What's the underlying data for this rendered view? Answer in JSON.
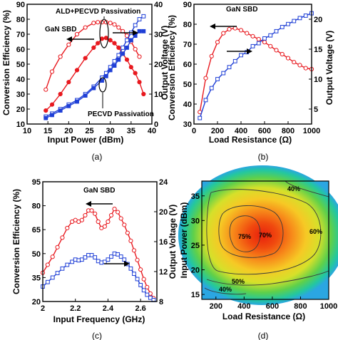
{
  "chart_data": [
    {
      "type": "line",
      "panel_label": "(a)",
      "annotations": [
        "GaN SBD",
        "ALD+PECVD Passivation",
        "PECVD Passivation"
      ],
      "xlabel": "Input Power (dBm)",
      "ylabel_left": "Conversion Efficiency (%)",
      "ylabel_right": "Output Voltage (V)",
      "xlim": [
        10,
        40
      ],
      "ylim_left": [
        10,
        90
      ],
      "ylim_right": [
        0,
        40
      ],
      "xticks": [
        10,
        15,
        20,
        25,
        30,
        35,
        40
      ],
      "yticks_left": [
        10,
        20,
        30,
        40,
        50,
        60,
        70,
        80,
        90
      ],
      "yticks_right": [
        0,
        10,
        20,
        30,
        40
      ],
      "series": [
        {
          "color": "#e8191f",
          "marker": "open-circle",
          "axis": "left",
          "x": [
            14.5,
            16,
            18,
            20,
            22,
            24,
            26,
            27,
            28,
            29,
            30,
            31,
            32,
            33,
            34,
            35,
            36,
            37
          ],
          "y": [
            33,
            45,
            55,
            63,
            70,
            74.5,
            77.5,
            78,
            78,
            78,
            77.5,
            76.5,
            74.5,
            72,
            69,
            65,
            60,
            55
          ]
        },
        {
          "color": "#e8191f",
          "marker": "filled-circle",
          "axis": "left",
          "x": [
            14.5,
            16,
            18,
            20,
            22,
            24,
            26,
            27,
            28,
            29,
            30,
            31,
            32,
            33,
            34,
            35,
            36,
            37,
            38
          ],
          "y": [
            19,
            23,
            30,
            38,
            46,
            54,
            61,
            64,
            67,
            67.5,
            66,
            64,
            61,
            57,
            53,
            48,
            44,
            38,
            30
          ]
        },
        {
          "color": "#1f3fd6",
          "marker": "open-square",
          "axis": "right",
          "x": [
            14.5,
            16,
            18,
            20,
            22,
            24,
            26,
            28,
            29,
            30,
            31,
            32,
            33,
            34,
            35,
            36,
            37,
            38
          ],
          "y": [
            2.5,
            3.5,
            5,
            6.5,
            8,
            10,
            12.5,
            15.5,
            17,
            19,
            21,
            23,
            25.5,
            28,
            30.5,
            33,
            35,
            36
          ]
        },
        {
          "color": "#1f3fd6",
          "marker": "filled-square",
          "axis": "right",
          "x": [
            14.5,
            16,
            18,
            20,
            22,
            24,
            26,
            28,
            29,
            30,
            31,
            32,
            33,
            34,
            35,
            36,
            37,
            38
          ],
          "y": [
            2,
            3,
            4.5,
            6,
            7.5,
            9.5,
            12,
            14.5,
            16,
            18,
            19.5,
            21.5,
            23.5,
            25.5,
            28,
            29.5,
            31,
            31
          ]
        }
      ]
    },
    {
      "type": "line",
      "panel_label": "(b)",
      "annotations": [
        "GaN SBD"
      ],
      "xlabel": "Load Resistance (Ω)",
      "ylabel_left": "Conversion Efficiency (%)",
      "ylabel_right": "Output Voltage (V)",
      "xlim": [
        0,
        1000
      ],
      "ylim_left": [
        30,
        90
      ],
      "ylim_right": [
        2.5,
        22.5
      ],
      "xticks": [
        0,
        200,
        400,
        600,
        800,
        1000
      ],
      "yticks_left": [
        30,
        40,
        50,
        60,
        70,
        80,
        90
      ],
      "yticks_right": [
        5,
        10,
        15,
        20
      ],
      "series": [
        {
          "color": "#e8191f",
          "marker": "open-circle",
          "axis": "left",
          "x": [
            50,
            100,
            150,
            200,
            250,
            300,
            350,
            400,
            450,
            500,
            550,
            600,
            650,
            700,
            750,
            800,
            850,
            900,
            950,
            1000
          ],
          "y": [
            36,
            53,
            64,
            71,
            75.5,
            77.5,
            78,
            77,
            75.5,
            74,
            72.5,
            71,
            69,
            67,
            65,
            63,
            61,
            59.5,
            58,
            57.5
          ]
        },
        {
          "color": "#1f3fd6",
          "marker": "open-square",
          "axis": "right",
          "x": [
            50,
            100,
            150,
            200,
            250,
            300,
            350,
            400,
            450,
            500,
            550,
            600,
            650,
            700,
            750,
            800,
            850,
            900,
            950,
            1000
          ],
          "y": [
            3.5,
            6.5,
            8.5,
            10,
            11,
            12,
            13,
            14,
            14.5,
            15.5,
            16,
            16.8,
            17.3,
            18,
            18.7,
            19.2,
            19.7,
            20.2,
            20.6,
            21
          ]
        }
      ]
    },
    {
      "type": "line",
      "panel_label": "(c)",
      "annotations": [
        "GaN SBD"
      ],
      "xlabel": "Input Frequency (GHz)",
      "ylabel_left": "Conversion Efficiency (%)",
      "ylabel_right": "Output Voltage (V)",
      "xlim": [
        2.0,
        2.7
      ],
      "ylim_left": [
        20,
        95
      ],
      "ylim_right": [
        8,
        24
      ],
      "xticks": [
        2.0,
        2.2,
        2.4,
        2.6
      ],
      "yticks_left": [
        20,
        35,
        50,
        65,
        80,
        95
      ],
      "yticks_right": [
        8,
        12,
        16,
        20,
        24
      ],
      "series": [
        {
          "color": "#e8191f",
          "marker": "open-circle",
          "axis": "left",
          "x": [
            2.0,
            2.03,
            2.06,
            2.09,
            2.12,
            2.15,
            2.18,
            2.2,
            2.22,
            2.24,
            2.26,
            2.28,
            2.3,
            2.32,
            2.34,
            2.36,
            2.38,
            2.4,
            2.42,
            2.44,
            2.46,
            2.48,
            2.5,
            2.52,
            2.54,
            2.56,
            2.58,
            2.6,
            2.62,
            2.64,
            2.66,
            2.68
          ],
          "y": [
            38,
            43,
            48,
            54,
            60,
            66,
            70,
            71,
            70,
            71,
            74,
            77,
            77,
            75,
            70,
            66,
            67,
            70,
            74,
            78,
            76,
            72,
            68,
            63,
            58,
            52,
            46,
            40,
            34,
            29,
            25,
            22
          ]
        },
        {
          "color": "#1f3fd6",
          "marker": "open-square",
          "axis": "right",
          "x": [
            2.0,
            2.03,
            2.06,
            2.09,
            2.12,
            2.15,
            2.18,
            2.2,
            2.22,
            2.24,
            2.26,
            2.28,
            2.3,
            2.32,
            2.34,
            2.36,
            2.38,
            2.4,
            2.42,
            2.44,
            2.46,
            2.48,
            2.5,
            2.52,
            2.54,
            2.56,
            2.58,
            2.6,
            2.62,
            2.64,
            2.66,
            2.68
          ],
          "y": [
            10,
            10.6,
            11.2,
            11.8,
            12.4,
            12.9,
            13.3,
            13.6,
            13.5,
            13.6,
            13.9,
            14.2,
            14.2,
            13.9,
            13.4,
            13.2,
            13.3,
            13.6,
            14.0,
            14.4,
            14.3,
            14.0,
            13.6,
            13.0,
            12.4,
            11.7,
            11.0,
            10.2,
            9.5,
            8.9,
            8.5,
            8.2
          ]
        }
      ]
    },
    {
      "type": "heatmap",
      "panel_label": "(d)",
      "xlabel": "Load Resistance (Ω)",
      "ylabel": "Input Power (dBm)",
      "xlim": [
        100,
        1000
      ],
      "ylim": [
        14,
        38
      ],
      "xticks": [
        200,
        400,
        600,
        800,
        1000
      ],
      "yticks": [
        15,
        20,
        25,
        30,
        35
      ],
      "contour_labels": [
        "40%",
        "75%",
        "70%",
        "60%",
        "50%",
        "40%"
      ],
      "peak": {
        "x": 350,
        "y": 28.5,
        "value": 78
      }
    }
  ]
}
